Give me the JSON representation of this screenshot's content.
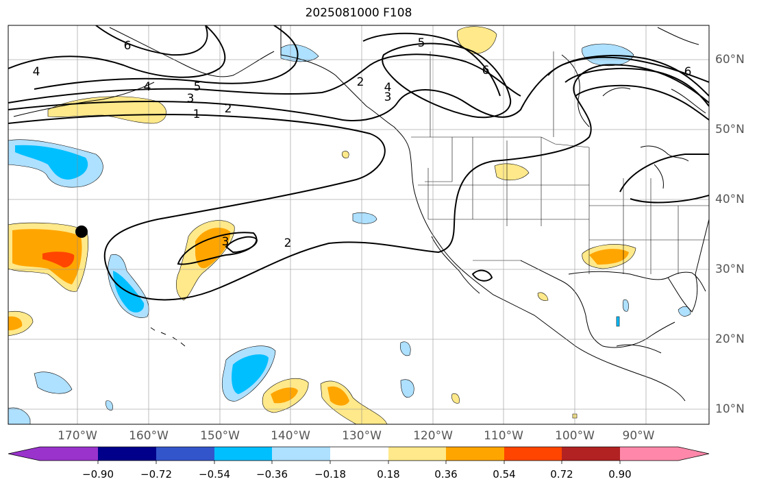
{
  "title": "2025081000 F108",
  "map": {
    "lon_labels": [
      "170°W",
      "160°W",
      "150°W",
      "140°W",
      "130°W",
      "120°W",
      "110°W",
      "100°W",
      "90°W"
    ],
    "lat_labels": [
      "60°N",
      "50°N",
      "40°N",
      "30°N",
      "20°N",
      "10°N"
    ],
    "contour_labels": [
      "6",
      "4",
      "5",
      "4",
      "3",
      "2",
      "1",
      "5",
      "6",
      "2",
      "4",
      "3",
      "6",
      "3",
      "2"
    ],
    "marker": "black-dot"
  },
  "colorbar": {
    "ticks": [
      "−0.90",
      "−0.72",
      "−0.54",
      "−0.36",
      "−0.18",
      "0.18",
      "0.36",
      "0.54",
      "0.72",
      "0.90"
    ],
    "colors": [
      "#9933cc",
      "#00008b",
      "#3355cc",
      "#00bfff",
      "#aee0ff",
      "#ffffff",
      "#ffe98a",
      "#ffa500",
      "#ff4500",
      "#b22222",
      "#ff88aa"
    ]
  }
}
